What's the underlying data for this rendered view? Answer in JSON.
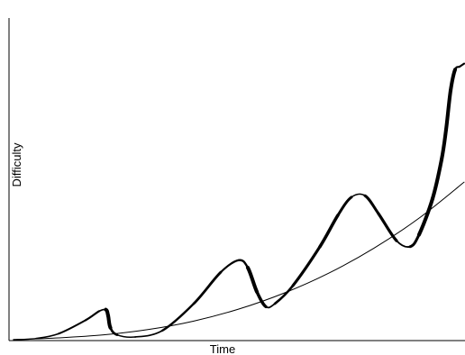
{
  "chart_data": {
    "type": "line",
    "title": "",
    "xlabel": "Time",
    "ylabel": "Difficulty",
    "xlim": [
      0,
      100
    ],
    "ylim": [
      0,
      100
    ],
    "grid": false,
    "legend": "none",
    "axis_color": "#000000",
    "series": [
      {
        "x": [
          0,
          5,
          10,
          16,
          19,
          20.5,
          21,
          21.5,
          23,
          27,
          33,
          40,
          46,
          50,
          52,
          54,
          56,
          58,
          62,
          68,
          72,
          75,
          78,
          81,
          85,
          88,
          90,
          93,
          95,
          96,
          97,
          98,
          99,
          100
        ],
        "y": [
          0,
          0.4,
          2,
          6.5,
          9.5,
          10,
          8,
          4,
          1.6,
          0.9,
          3,
          12,
          22.5,
          26.5,
          24,
          16,
          11,
          12,
          18,
          31,
          41.5,
          47.5,
          48,
          42,
          33,
          31,
          35,
          47,
          60,
          70,
          83,
          90,
          91,
          92
        ]
      },
      {
        "x": [
          0,
          10,
          20,
          30,
          40,
          50,
          60,
          70,
          80,
          90,
          100
        ],
        "y": [
          0,
          0.6,
          1.6,
          3.4,
          6.2,
          10.2,
          15.5,
          22.2,
          30.5,
          40.5,
          52.5
        ]
      }
    ]
  }
}
